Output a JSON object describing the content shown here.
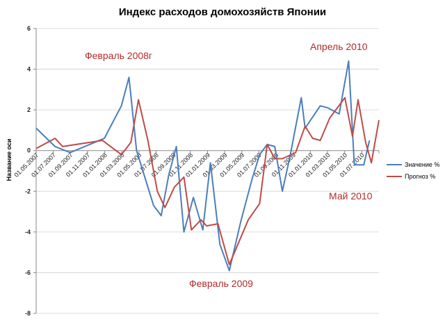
{
  "chart_data": {
    "type": "line",
    "title": "Индекс расходов домохозяйств Японии",
    "ylabel": "Название оси",
    "xlabel": "",
    "ylim": [
      -8,
      6
    ],
    "yticks": [
      "6",
      "4",
      "2",
      "0",
      "-2",
      "-4",
      "-6",
      "-8"
    ],
    "xtick_labels": [
      "01.05.2007",
      "01.07.2007",
      "01.09.2007",
      "01.11.2007",
      "01.01.2008",
      "01.03.2008",
      "01.05.2008",
      "01.07.2008",
      "01.09.2008",
      "01.11.2008",
      "01.01.2009",
      "01.03.2009",
      "01.05.2009",
      "01.07.2009",
      "01.09.2009",
      "01.11.2009",
      "01.01.2010",
      "01.03.2010",
      "01.05.2010",
      "01.07.2010"
    ],
    "grid": {
      "horizontal": true,
      "vertical": false
    },
    "legend_position": "right",
    "series": [
      {
        "name": "Значение %",
        "color": "#4a7ebb",
        "points": [
          [
            0,
            1.1
          ],
          [
            1.0,
            0.2
          ],
          [
            1.8,
            -0.1
          ],
          [
            3.6,
            0.6
          ],
          [
            4.5,
            2.2
          ],
          [
            4.9,
            3.6
          ],
          [
            5.3,
            0.0
          ],
          [
            5.8,
            -1.5
          ],
          [
            6.2,
            -2.7
          ],
          [
            6.6,
            -3.2
          ],
          [
            7.0,
            -1.2
          ],
          [
            7.4,
            0.2
          ],
          [
            7.8,
            -4.0
          ],
          [
            8.3,
            -2.3
          ],
          [
            8.8,
            -3.9
          ],
          [
            9.2,
            -0.6
          ],
          [
            9.7,
            -4.6
          ],
          [
            10.2,
            -5.9
          ],
          [
            10.8,
            -3.5
          ],
          [
            11.4,
            -1.4
          ],
          [
            11.8,
            -0.2
          ],
          [
            12.2,
            0.3
          ],
          [
            12.6,
            0.2
          ],
          [
            13.0,
            -2.0
          ],
          [
            13.4,
            -0.3
          ],
          [
            14.0,
            2.6
          ],
          [
            14.2,
            1.1
          ],
          [
            15.0,
            2.2
          ],
          [
            15.4,
            2.1
          ],
          [
            16.0,
            1.8
          ],
          [
            16.5,
            4.4
          ],
          [
            16.8,
            -0.7
          ],
          [
            17.3,
            -0.7
          ],
          [
            17.6,
            0.5
          ]
        ]
      },
      {
        "name": "Прогноз %",
        "color": "#be4b48",
        "points": [
          [
            0,
            0.1
          ],
          [
            1.0,
            0.6
          ],
          [
            1.4,
            0.2
          ],
          [
            3.5,
            0.5
          ],
          [
            4.5,
            -0.2
          ],
          [
            5.0,
            0.4
          ],
          [
            5.4,
            2.5
          ],
          [
            5.9,
            0.5
          ],
          [
            6.4,
            -2.0
          ],
          [
            6.8,
            -2.8
          ],
          [
            7.3,
            -1.8
          ],
          [
            7.8,
            -1.3
          ],
          [
            8.2,
            -3.9
          ],
          [
            8.7,
            -3.4
          ],
          [
            9.0,
            -3.7
          ],
          [
            9.6,
            -3.6
          ],
          [
            10.2,
            -5.6
          ],
          [
            11.2,
            -3.4
          ],
          [
            11.8,
            -2.6
          ],
          [
            12.2,
            0.3
          ],
          [
            12.6,
            -0.4
          ],
          [
            13.0,
            -0.4
          ],
          [
            13.7,
            -0.1
          ],
          [
            14.2,
            1.2
          ],
          [
            14.6,
            0.6
          ],
          [
            15.0,
            0.5
          ],
          [
            15.5,
            1.6
          ],
          [
            16.3,
            2.6
          ],
          [
            16.7,
            0.7
          ],
          [
            17.0,
            2.5
          ],
          [
            17.4,
            0.4
          ],
          [
            17.7,
            -0.6
          ],
          [
            18.1,
            1.5
          ]
        ]
      }
    ],
    "annotations": [
      {
        "text": "Февраль 2008г",
        "color": "#b22a2a"
      },
      {
        "text": "Апрель 2010",
        "color": "#b22a2a"
      },
      {
        "text": "Май 2010",
        "color": "#b22a2a"
      },
      {
        "text": "Февраль 2009",
        "color": "#b22a2a"
      }
    ]
  }
}
